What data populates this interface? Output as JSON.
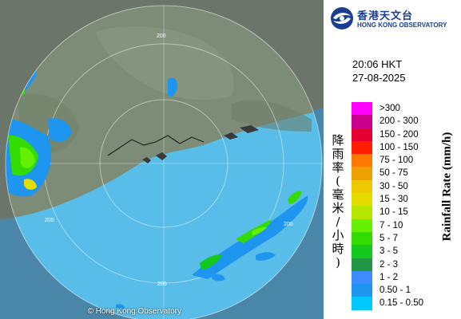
{
  "logo": {
    "chinese": "香港天文台",
    "english": "HONG KONG OBSERVATORY"
  },
  "timestamp": {
    "time": "20:06 HKT",
    "date": "27-08-2025"
  },
  "legend": {
    "title_en": "Rainfall Rate (mm/h)",
    "title_cn": "降雨率(毫米/小時)",
    "categories": [
      {
        "label": ">300",
        "color": "#ff00ff"
      },
      {
        "label": "200 - 300",
        "color": "#c8008c"
      },
      {
        "label": "150 - 200",
        "color": "#e60032"
      },
      {
        "label": "100 - 150",
        "color": "#ff1e00"
      },
      {
        "label": "75 - 100",
        "color": "#ff7800"
      },
      {
        "label": "50 - 75",
        "color": "#f0a000"
      },
      {
        "label": "30 - 50",
        "color": "#f0c800"
      },
      {
        "label": "15 - 30",
        "color": "#e6dc00"
      },
      {
        "label": "10 - 15",
        "color": "#b4e600"
      },
      {
        "label": "7 - 10",
        "color": "#64f000"
      },
      {
        "label": "5 - 7",
        "color": "#32dc00"
      },
      {
        "label": "3 - 5",
        "color": "#14c81e"
      },
      {
        "label": "2 - 3",
        "color": "#1e9646"
      },
      {
        "label": "1 - 2",
        "color": "#3c8cff"
      },
      {
        "label": "0.50 - 1",
        "color": "#1e96f0"
      },
      {
        "label": "0.15 - 0.50",
        "color": "#00c8ff"
      }
    ]
  },
  "map": {
    "range_ring_label": "200",
    "copyright": "© Hong Kong Observatory"
  },
  "colors": {
    "sea": "#55b9e6",
    "land": "#6a7c66",
    "brand": "#1a3f8f"
  }
}
